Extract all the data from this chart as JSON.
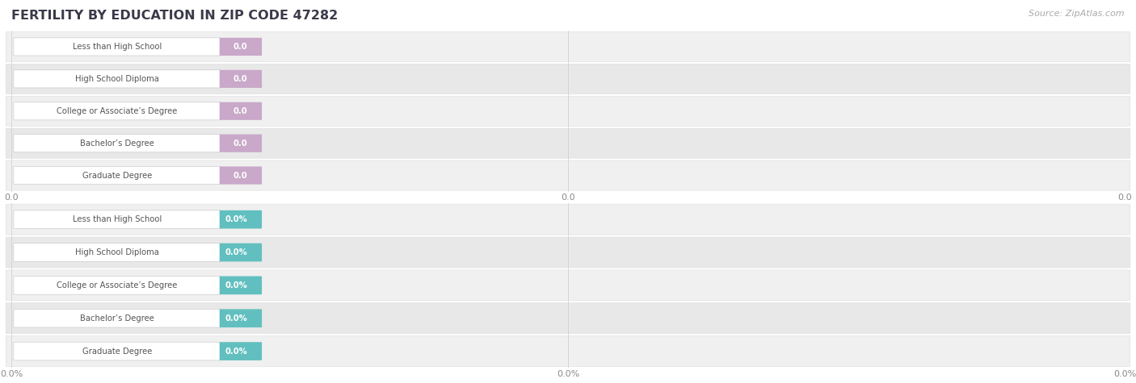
{
  "title": "FERTILITY BY EDUCATION IN ZIP CODE 47282",
  "source": "Source: ZipAtlas.com",
  "categories": [
    "Less than High School",
    "High School Diploma",
    "College or Associate’s Degree",
    "Bachelor’s Degree",
    "Graduate Degree"
  ],
  "top_values": [
    0.0,
    0.0,
    0.0,
    0.0,
    0.0
  ],
  "bottom_values": [
    0.0,
    0.0,
    0.0,
    0.0,
    0.0
  ],
  "top_color": "#c9a8c9",
  "bottom_color": "#62bfbf",
  "row_bg_even": "#f0f0f0",
  "row_bg_odd": "#e8e8e8",
  "label_box_color": "#ffffff",
  "label_box_edge": "#cccccc",
  "bar_bg_color": "#e0e0e0",
  "background_color": "#ffffff",
  "label_text_color": "#555555",
  "value_text_color": "#ffffff",
  "title_color": "#3a3a4a",
  "source_color": "#aaaaaa",
  "tick_color": "#888888",
  "gridline_color": "#cccccc"
}
